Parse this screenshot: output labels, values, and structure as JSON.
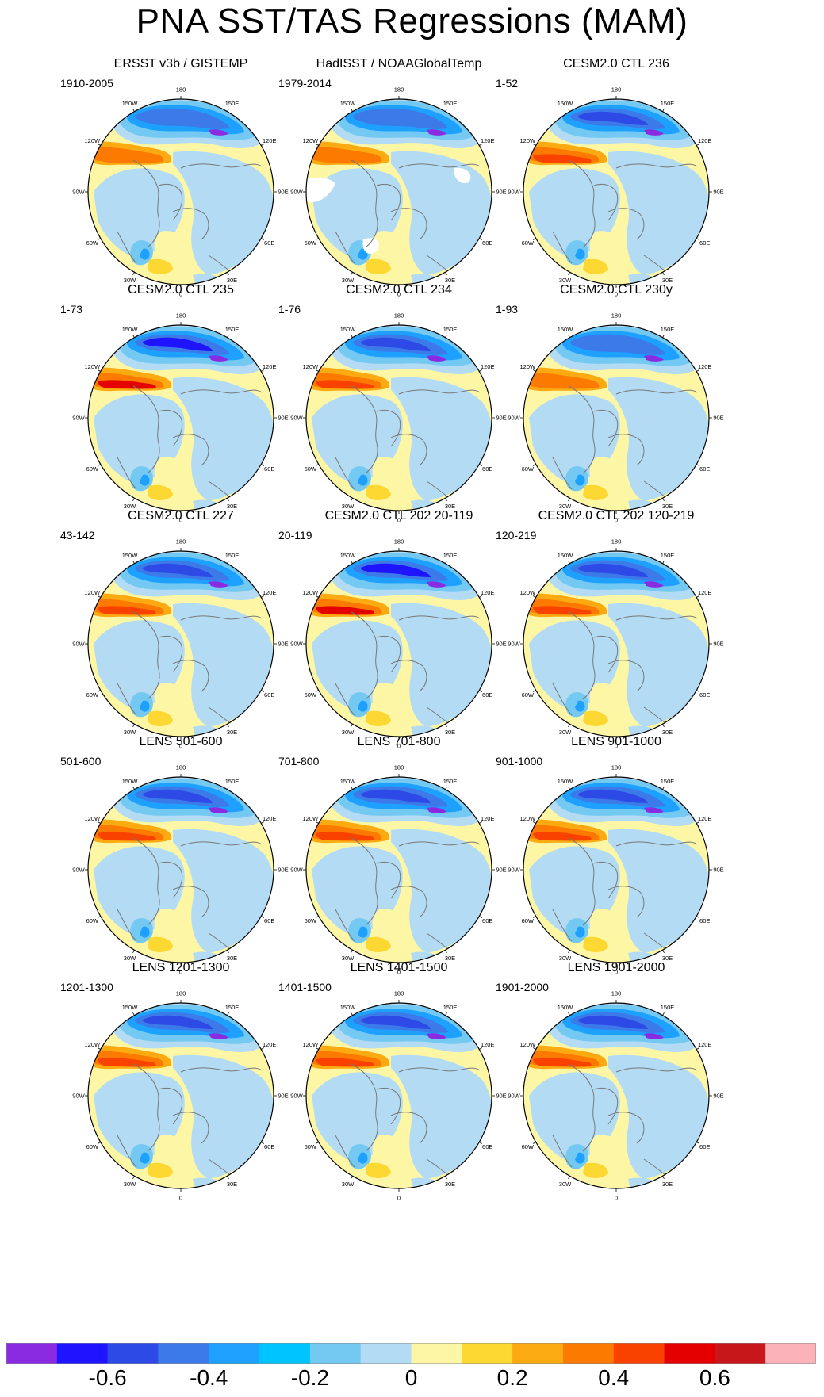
{
  "title": "PNA SST/TAS Regressions (MAM)",
  "colors": {
    "scale": [
      "#8a2be2",
      "#1e14ff",
      "#2e4ae6",
      "#3b7ae8",
      "#1ea0ff",
      "#00c4ff",
      "#74c9f2",
      "#b3dcf4",
      "#fdf6a5",
      "#fdd832",
      "#fcaa12",
      "#fc7a00",
      "#f94200",
      "#e50000",
      "#c8171b",
      "#fbb2b8"
    ],
    "land": "#b3dcf4",
    "ocean": "#fdf6a5",
    "coast": "#777777"
  },
  "colorbar": {
    "labels": [
      "-0.6",
      "-0.4",
      "-0.2",
      "0",
      "0.2",
      "0.4",
      "0.6"
    ],
    "label_boundaries": [
      2,
      4,
      6,
      8,
      10,
      12,
      14
    ]
  },
  "longitude_labels": [
    "180",
    "150E",
    "120E",
    "90E",
    "60E",
    "30E",
    "0",
    "30W",
    "60W",
    "90W",
    "120W",
    "150W"
  ],
  "panels": [
    {
      "title": "ERSST v3b / GISTEMP",
      "period": "1910-2005",
      "pna_strength": 0.45,
      "missing": false
    },
    {
      "title": "HadISST / NOAAGlobalTemp",
      "period": "1979-2014",
      "pna_strength": 0.35,
      "missing": true
    },
    {
      "title": "CESM2.0 CTL 236",
      "period": "1-52",
      "pna_strength": 0.6,
      "missing": false
    },
    {
      "title": "CESM2.0 CTL 235",
      "period": "1-73",
      "pna_strength": 0.7,
      "missing": false
    },
    {
      "title": "CESM2.0 CTL 234",
      "period": "1-76",
      "pna_strength": 0.55,
      "missing": false
    },
    {
      "title": "CESM2.0 CTL 230y",
      "period": "1-93",
      "pna_strength": 0.45,
      "missing": false
    },
    {
      "title": "CESM2.0 CTL 227",
      "period": "43-142",
      "pna_strength": 0.5,
      "missing": false
    },
    {
      "title": "CESM2.0 CTL 202 20-119",
      "period": "20-119",
      "pna_strength": 0.65,
      "missing": false
    },
    {
      "title": "CESM2.0 CTL 202 120-219",
      "period": "120-219",
      "pna_strength": 0.55,
      "missing": false
    },
    {
      "title": "LENS 501-600",
      "period": "501-600",
      "pna_strength": 0.5,
      "missing": false
    },
    {
      "title": "LENS 701-800",
      "period": "701-800",
      "pna_strength": 0.5,
      "missing": false
    },
    {
      "title": "LENS 901-1000",
      "period": "901-1000",
      "pna_strength": 0.5,
      "missing": false
    },
    {
      "title": "LENS 1201-1300",
      "period": "1201-1300",
      "pna_strength": 0.55,
      "missing": false
    },
    {
      "title": "LENS 1401-1500",
      "period": "1401-1500",
      "pna_strength": 0.5,
      "missing": false
    },
    {
      "title": "LENS 1901-2000",
      "period": "1901-2000",
      "pna_strength": 0.55,
      "missing": false
    }
  ]
}
